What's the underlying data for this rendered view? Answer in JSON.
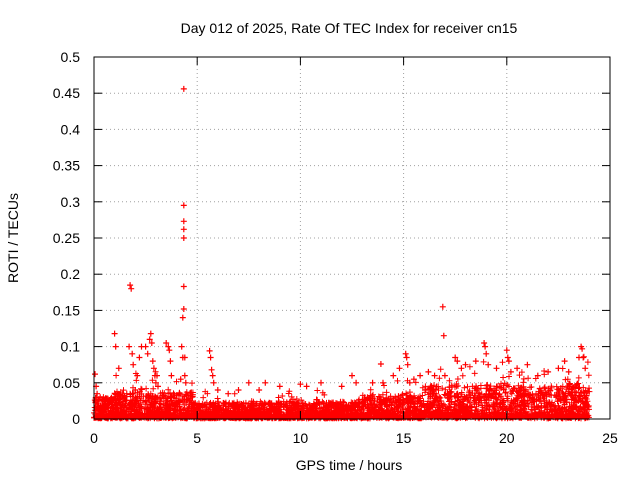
{
  "chart_data": {
    "type": "scatter",
    "title": "Day 012 of 2025, Rate Of TEC Index for receiver cn15",
    "xlabel": "GPS time / hours",
    "ylabel": "ROTI / TECUs",
    "xlim": [
      0,
      25
    ],
    "ylim": [
      0,
      0.5
    ],
    "xticks": [
      0,
      5,
      10,
      15,
      20,
      25
    ],
    "xtick_labels": [
      "0",
      "5",
      "10",
      "15",
      "20",
      "25"
    ],
    "yticks": [
      0,
      0.05,
      0.1,
      0.15,
      0.2,
      0.25,
      0.3,
      0.35,
      0.4,
      0.45,
      0.5
    ],
    "ytick_labels": [
      "0",
      "0.05",
      "0.1",
      "0.15",
      "0.2",
      "0.25",
      "0.3",
      "0.35",
      "0.4",
      "0.45",
      "0.5"
    ],
    "grid": true,
    "marker": "+",
    "marker_color": "#ff0000",
    "series": [
      {
        "name": "ROTI",
        "description": "dense background cloud between 0 and about 0.03 TECU/s over 0-24 h (generated procedurally)",
        "x": [
          0.05,
          0.1,
          0.15,
          0.3,
          0.5,
          1.0,
          1.05,
          1.2,
          1.7,
          1.75,
          1.8,
          1.85,
          1.9,
          2.0,
          2.1,
          2.2,
          2.3,
          2.5,
          2.6,
          2.7,
          2.75,
          2.8,
          2.85,
          2.9,
          2.95,
          3.0,
          3.05,
          3.1,
          3.5,
          3.6,
          3.65,
          3.7,
          3.75,
          4.2,
          4.25,
          4.3,
          4.3,
          4.35,
          4.35,
          4.35,
          4.35,
          4.35,
          4.35,
          4.35,
          4.4,
          4.4,
          4.45,
          5.6,
          5.65,
          5.7,
          5.75,
          5.8,
          6.0,
          6.5,
          7.0,
          7.5,
          8.0,
          8.3,
          9.0,
          10.0,
          10.3,
          11.0,
          12.0,
          12.5,
          12.7,
          13.5,
          13.9,
          14.0,
          14.5,
          14.8,
          15.1,
          15.15,
          15.2,
          15.3,
          15.5,
          15.8,
          16.2,
          16.5,
          16.9,
          16.95,
          17.0,
          17.5,
          17.6,
          17.8,
          18.0,
          18.5,
          18.9,
          18.95,
          19.0,
          19.1,
          19.5,
          20.0,
          20.05,
          20.1,
          20.2,
          20.5,
          21.0,
          21.5,
          22.0,
          22.5,
          22.8,
          23.0,
          23.5,
          23.6,
          23.65,
          23.7,
          23.8
        ],
        "y": [
          0.062,
          0.045,
          0.035,
          0.03,
          0.025,
          0.118,
          0.1,
          0.07,
          0.1,
          0.185,
          0.18,
          0.09,
          0.075,
          0.04,
          0.06,
          0.085,
          0.1,
          0.1,
          0.09,
          0.11,
          0.118,
          0.105,
          0.08,
          0.07,
          0.06,
          0.05,
          0.06,
          0.045,
          0.105,
          0.1,
          0.095,
          0.08,
          0.06,
          0.055,
          0.1,
          0.085,
          0.14,
          0.456,
          0.295,
          0.273,
          0.262,
          0.25,
          0.183,
          0.152,
          0.085,
          0.06,
          0.05,
          0.094,
          0.085,
          0.068,
          0.06,
          0.05,
          0.04,
          0.035,
          0.04,
          0.05,
          0.04,
          0.05,
          0.045,
          0.048,
          0.045,
          0.05,
          0.045,
          0.06,
          0.05,
          0.05,
          0.076,
          0.05,
          0.06,
          0.07,
          0.09,
          0.085,
          0.075,
          0.05,
          0.055,
          0.06,
          0.065,
          0.06,
          0.155,
          0.115,
          0.06,
          0.085,
          0.08,
          0.07,
          0.075,
          0.08,
          0.105,
          0.1,
          0.09,
          0.075,
          0.07,
          0.095,
          0.085,
          0.08,
          0.065,
          0.07,
          0.075,
          0.06,
          0.065,
          0.07,
          0.08,
          0.065,
          0.085,
          0.1,
          0.097,
          0.085,
          0.07
        ]
      }
    ]
  }
}
